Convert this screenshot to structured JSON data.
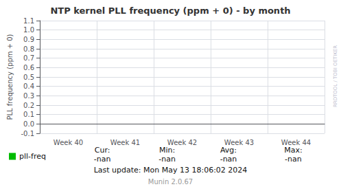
{
  "chart_data": {
    "type": "line",
    "title": "NTP kernel PLL frequency (ppm + 0) - by month",
    "ylabel": "PLL frequency (ppm + 0)",
    "categories": [
      "Week 40",
      "Week 41",
      "Week 42",
      "Week 43",
      "Week 44"
    ],
    "series": [
      {
        "name": "pll-freq",
        "color": "#00bb00",
        "values": [
          null,
          null,
          null,
          null,
          null
        ]
      }
    ],
    "ylim": [
      -0.1,
      1.1
    ],
    "yticks": [
      -0.1,
      {
        "value": 0.0,
        "label": "0.0"
      },
      0.1,
      0.2,
      0.3,
      0.4,
      0.5,
      0.6,
      0.7,
      0.8,
      0.9,
      {
        "value": 1.0,
        "label": "1.0"
      },
      1.1
    ],
    "grid": true,
    "legend": "bottom-left",
    "annotations": [
      "Cur:",
      "-nan",
      "Min:",
      "-nan",
      "Avg:",
      "-nan",
      "Max:",
      "-nan",
      "Last update: Mon May 13 18:06:02 2024",
      "Munin 2.0.67",
      "RRDTOOL / TOBI OETIKER"
    ]
  }
}
